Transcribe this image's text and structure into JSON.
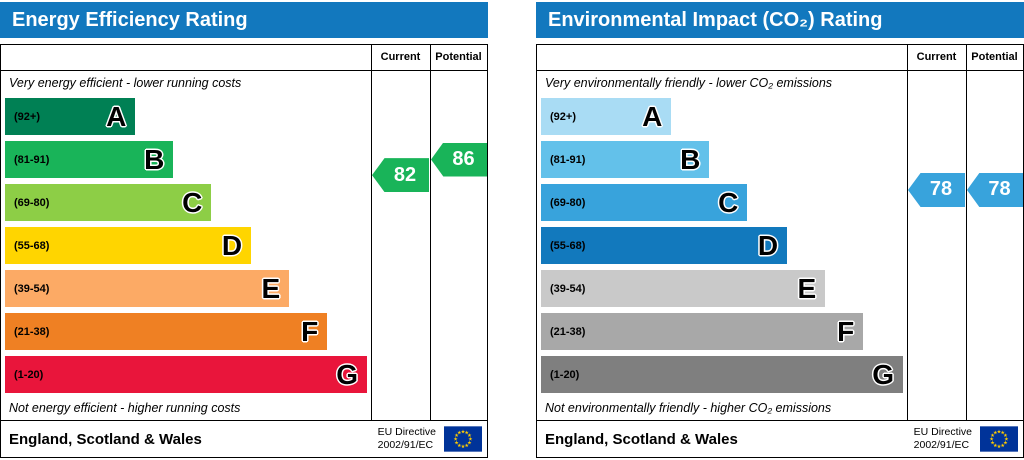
{
  "chart_data": [
    {
      "type": "bar",
      "title": "Energy Efficiency Rating",
      "title_bg": "#1278be",
      "columns": [
        "Current",
        "Potential"
      ],
      "top_label": "Very energy efficient - lower running costs",
      "bottom_label": "Not energy efficient - higher running costs",
      "bands": [
        {
          "label": "(92+)",
          "letter": "A",
          "min": 92,
          "max": 100,
          "color": "#008054",
          "width_pct": 36
        },
        {
          "label": "(81-91)",
          "letter": "B",
          "min": 81,
          "max": 91,
          "color": "#19b459",
          "width_pct": 46.5
        },
        {
          "label": "(69-80)",
          "letter": "C",
          "min": 69,
          "max": 80,
          "color": "#8dce46",
          "width_pct": 57
        },
        {
          "label": "(55-68)",
          "letter": "D",
          "min": 55,
          "max": 68,
          "color": "#ffd500",
          "width_pct": 68
        },
        {
          "label": "(39-54)",
          "letter": "E",
          "min": 39,
          "max": 54,
          "color": "#fcaa65",
          "width_pct": 78.5
        },
        {
          "label": "(21-38)",
          "letter": "F",
          "min": 21,
          "max": 38,
          "color": "#ef8023",
          "width_pct": 89
        },
        {
          "label": "(1-20)",
          "letter": "G",
          "min": 1,
          "max": 20,
          "color": "#e9153b",
          "width_pct": 100
        }
      ],
      "current": {
        "value": 82,
        "color": "#19b459"
      },
      "potential": {
        "value": 86,
        "color": "#19b459"
      },
      "footer": {
        "region": "England, Scotland & Wales",
        "directive_line1": "EU Directive",
        "directive_line2": "2002/91/EC"
      },
      "flag_colors": {
        "field": "#003399",
        "stars": "#ffcc00"
      }
    },
    {
      "type": "bar",
      "title": "Environmental Impact (CO₂) Rating",
      "title_bg": "#1278be",
      "columns": [
        "Current",
        "Potential"
      ],
      "top_label": "Very environmentally friendly - lower CO₂ emissions",
      "bottom_label": "Not environmentally friendly - higher CO₂ emissions",
      "bands": [
        {
          "label": "(92+)",
          "letter": "A",
          "min": 92,
          "max": 100,
          "color": "#a9dcf4",
          "width_pct": 36
        },
        {
          "label": "(81-91)",
          "letter": "B",
          "min": 81,
          "max": 91,
          "color": "#63c1ea",
          "width_pct": 46.5
        },
        {
          "label": "(69-80)",
          "letter": "C",
          "min": 69,
          "max": 80,
          "color": "#38a3dc",
          "width_pct": 57
        },
        {
          "label": "(55-68)",
          "letter": "D",
          "min": 55,
          "max": 68,
          "color": "#1279bd",
          "width_pct": 68
        },
        {
          "label": "(39-54)",
          "letter": "E",
          "min": 39,
          "max": 54,
          "color": "#c9c9c9",
          "width_pct": 78.5
        },
        {
          "label": "(21-38)",
          "letter": "F",
          "min": 21,
          "max": 38,
          "color": "#a8a8a8",
          "width_pct": 89
        },
        {
          "label": "(1-20)",
          "letter": "G",
          "min": 1,
          "max": 20,
          "color": "#7f7f7f",
          "width_pct": 100
        }
      ],
      "current": {
        "value": 78,
        "color": "#38a3dc"
      },
      "potential": {
        "value": 78,
        "color": "#38a3dc"
      },
      "footer": {
        "region": "England, Scotland & Wales",
        "directive_line1": "EU Directive",
        "directive_line2": "2002/91/EC"
      },
      "flag_colors": {
        "field": "#003399",
        "stars": "#ffcc00"
      }
    }
  ]
}
